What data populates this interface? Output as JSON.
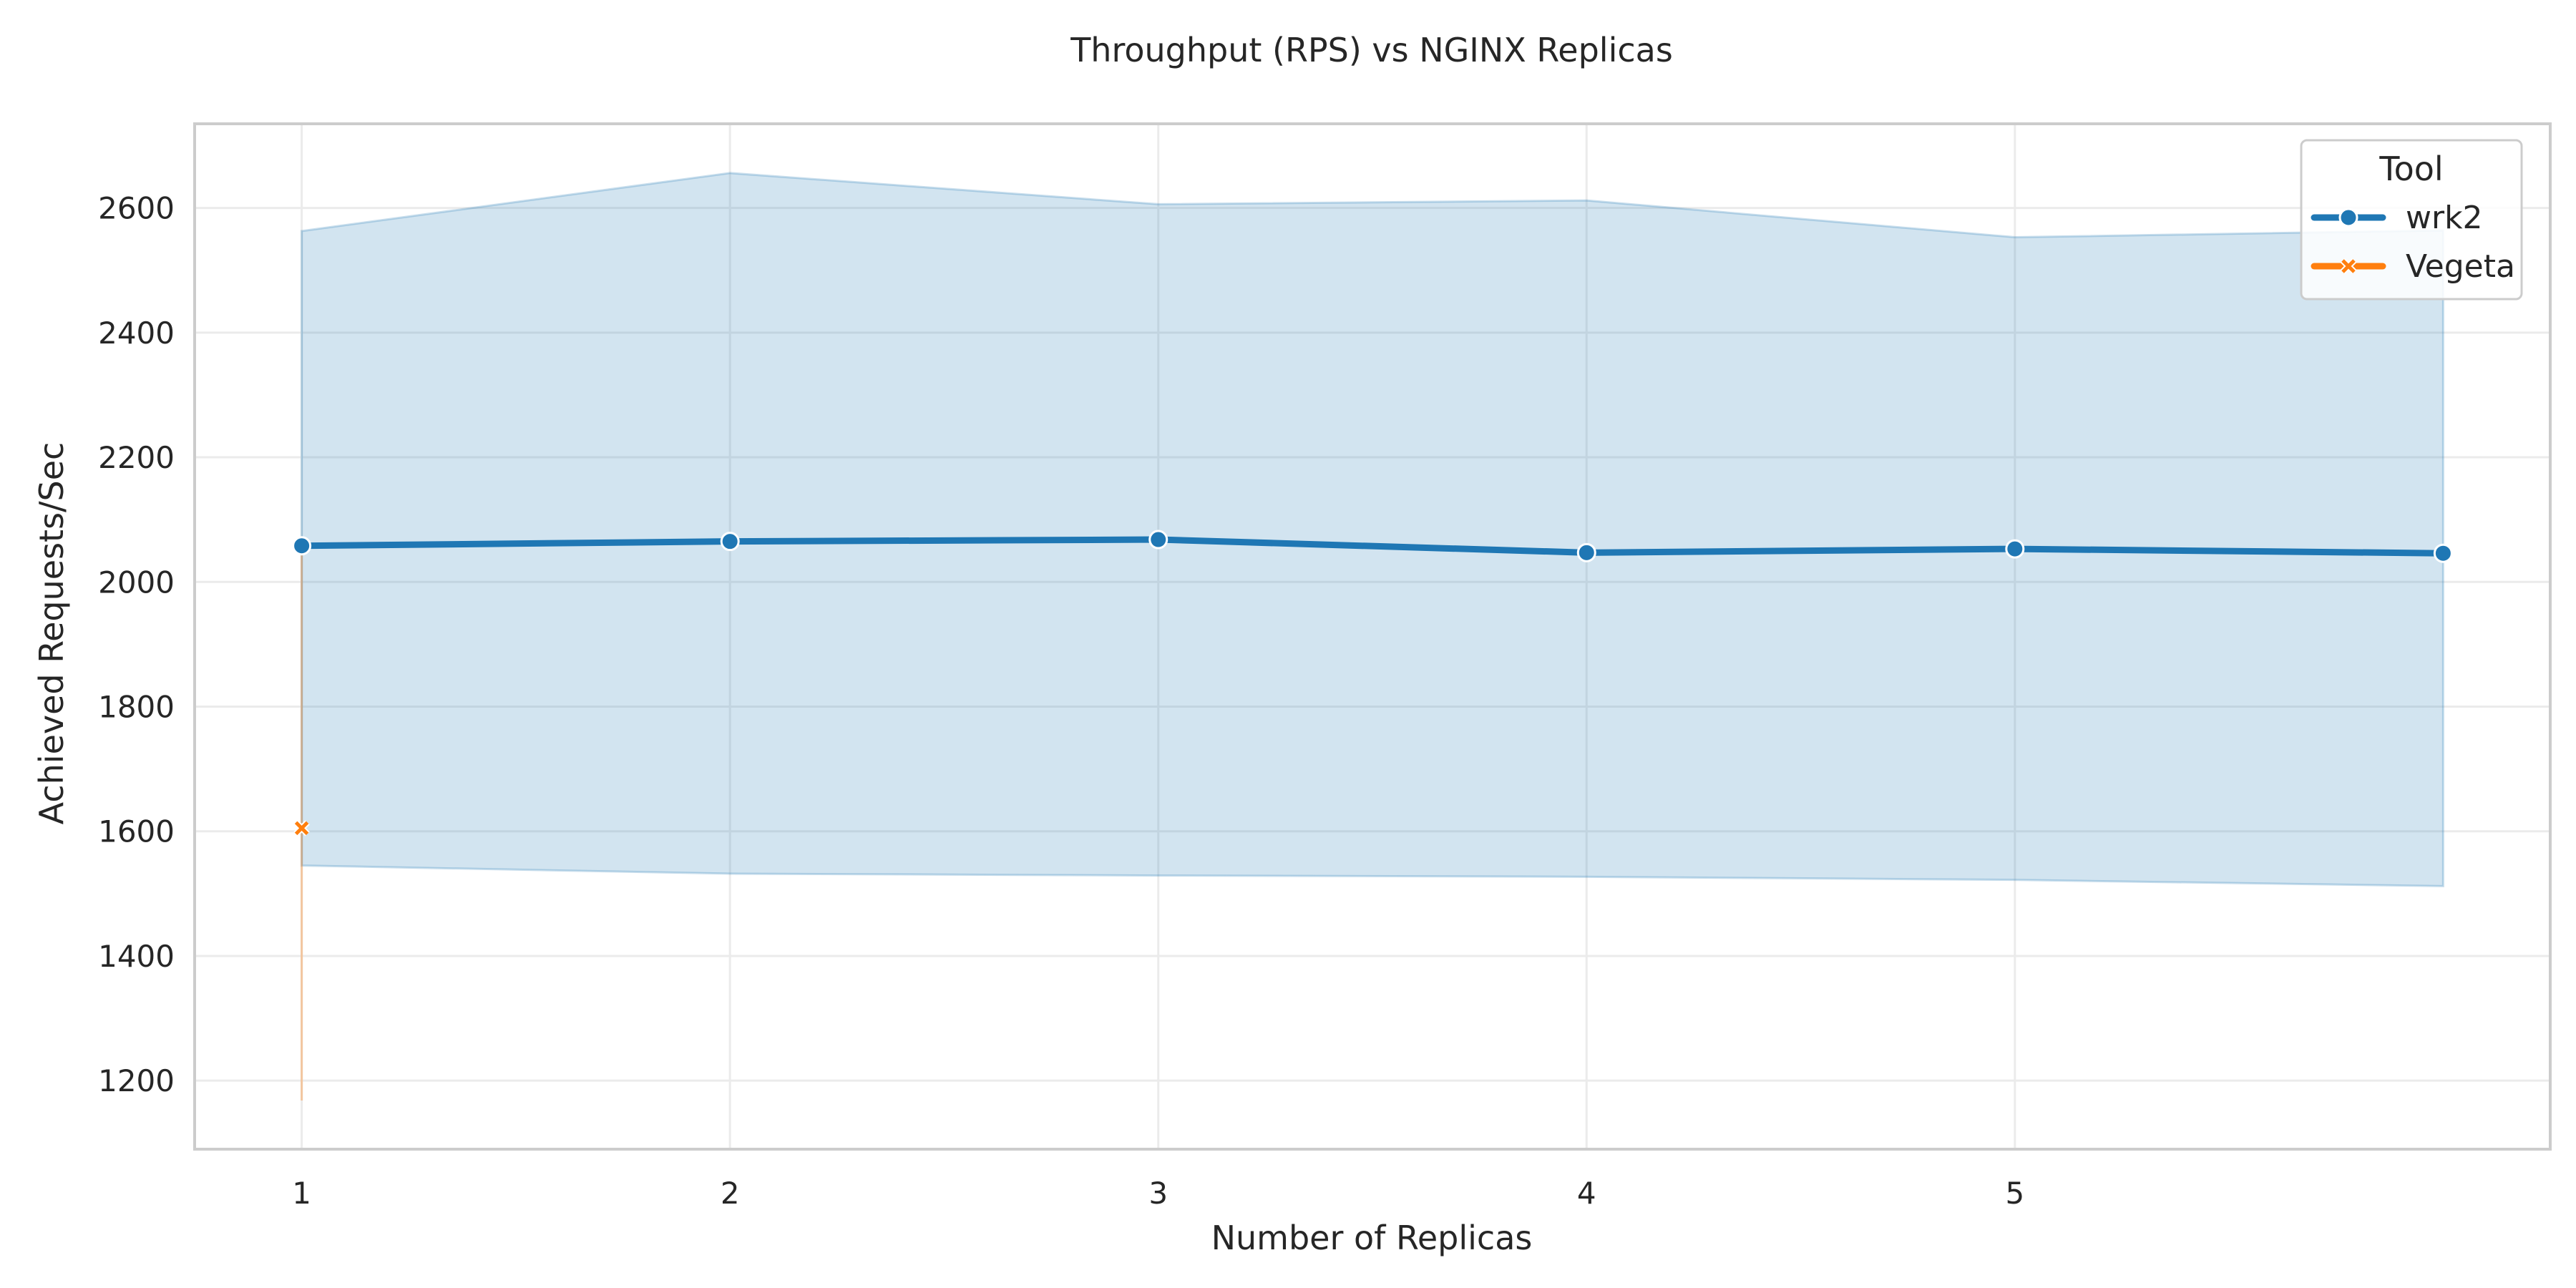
{
  "chart_data": {
    "type": "line",
    "title": "Throughput (RPS) vs NGINX Replicas",
    "xlabel": "Number of Replicas",
    "ylabel": "Achieved Requests/Sec",
    "xlim": [
      0.75,
      6.25
    ],
    "ylim": [
      1090,
      2735
    ],
    "xticks": [
      1,
      2,
      3,
      4,
      5
    ],
    "yticks": [
      1200,
      1400,
      1600,
      1800,
      2000,
      2200,
      2400,
      2600
    ],
    "grid": true,
    "legend": {
      "title": "Tool",
      "position": "top-right"
    },
    "series": [
      {
        "name": "wrk2",
        "color": "#1f77b4",
        "marker": "circle",
        "x": [
          1,
          2,
          3,
          4,
          5,
          6
        ],
        "y": [
          2058,
          2065,
          2068,
          2047,
          2053,
          2046
        ],
        "ci_low": [
          1545,
          1532,
          1529,
          1527,
          1522,
          1512
        ],
        "ci_high": [
          2563,
          2656,
          2606,
          2612,
          2553,
          2564
        ]
      },
      {
        "name": "Vegeta",
        "color": "#ff7f0e",
        "marker": "x",
        "x": [
          1
        ],
        "y": [
          1605
        ],
        "ci_low": [
          1168
        ],
        "ci_high": [
          2055
        ]
      }
    ]
  }
}
